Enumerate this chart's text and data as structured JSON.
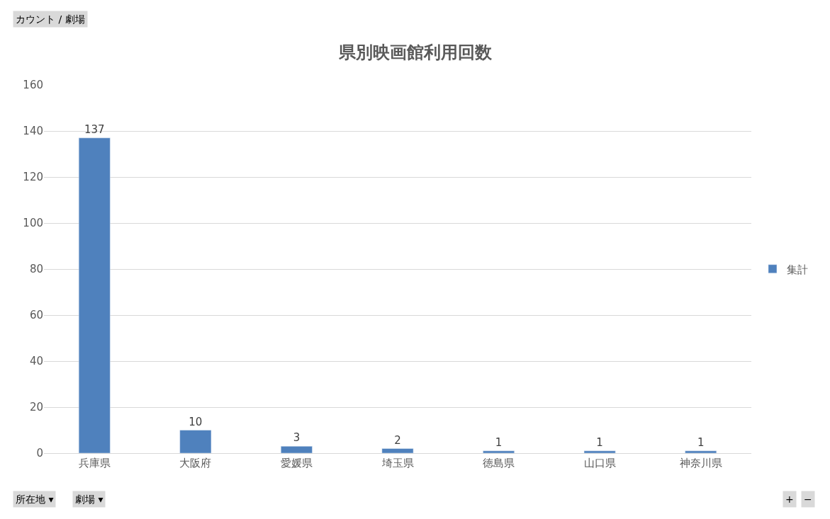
{
  "chart_data": {
    "type": "bar",
    "title": "県別映画館利用回数",
    "categories": [
      "兵庫県",
      "大阪府",
      "愛媛県",
      "埼玉県",
      "徳島県",
      "山口県",
      "神奈川県"
    ],
    "series": [
      {
        "name": "集計",
        "color": "#4f81bd",
        "values": [
          137,
          10,
          3,
          2,
          1,
          1,
          1
        ]
      }
    ],
    "ylim": [
      0,
      160
    ],
    "yticks": [
      0,
      20,
      40,
      60,
      80,
      100,
      120,
      140,
      160
    ],
    "grid": "y",
    "legend": "right",
    "data_labels": true,
    "annotations": [
      "カウント / 劇場",
      "所在地 ▾",
      "劇場 ▾",
      "+",
      "−"
    ]
  }
}
